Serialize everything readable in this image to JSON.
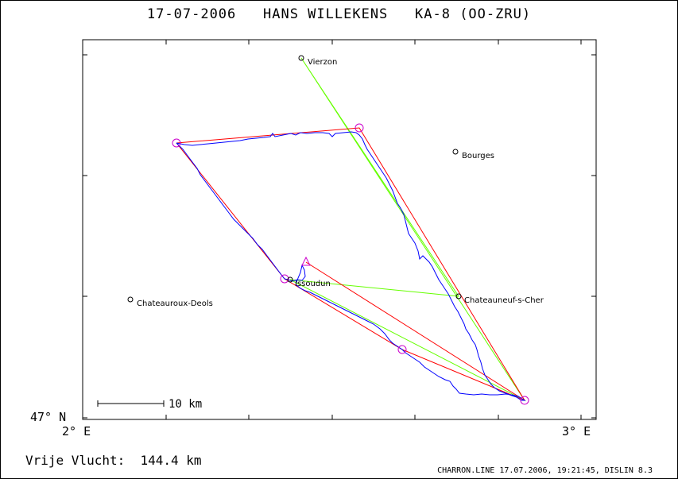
{
  "title": {
    "date": "17-07-2006",
    "pilot": "HANS WILLEKENS",
    "glider": "KA-8 (OO-ZRU)"
  },
  "axes": {
    "lat_label": "47° N",
    "lon_left": "2° E",
    "lon_right": "3° E"
  },
  "towns": [
    {
      "name": "Vierzon"
    },
    {
      "name": "Bourges"
    },
    {
      "name": "Issoudun"
    },
    {
      "name": "Chateauroux-Deols"
    },
    {
      "name": "Chateauneuf-s-Cher"
    }
  ],
  "scale": {
    "label": "10 km"
  },
  "footer": {
    "distance_label": "Vrije Vlucht:",
    "distance_value": "144.4 km",
    "software": "CHARRON.LINE 17.07.2006, 19:21:45, DISLIN 8.3"
  },
  "colors": {
    "track": "#0000ff",
    "task": "#ff0000",
    "declared": "#66ff00",
    "turnpoint": "#cc00cc"
  }
}
